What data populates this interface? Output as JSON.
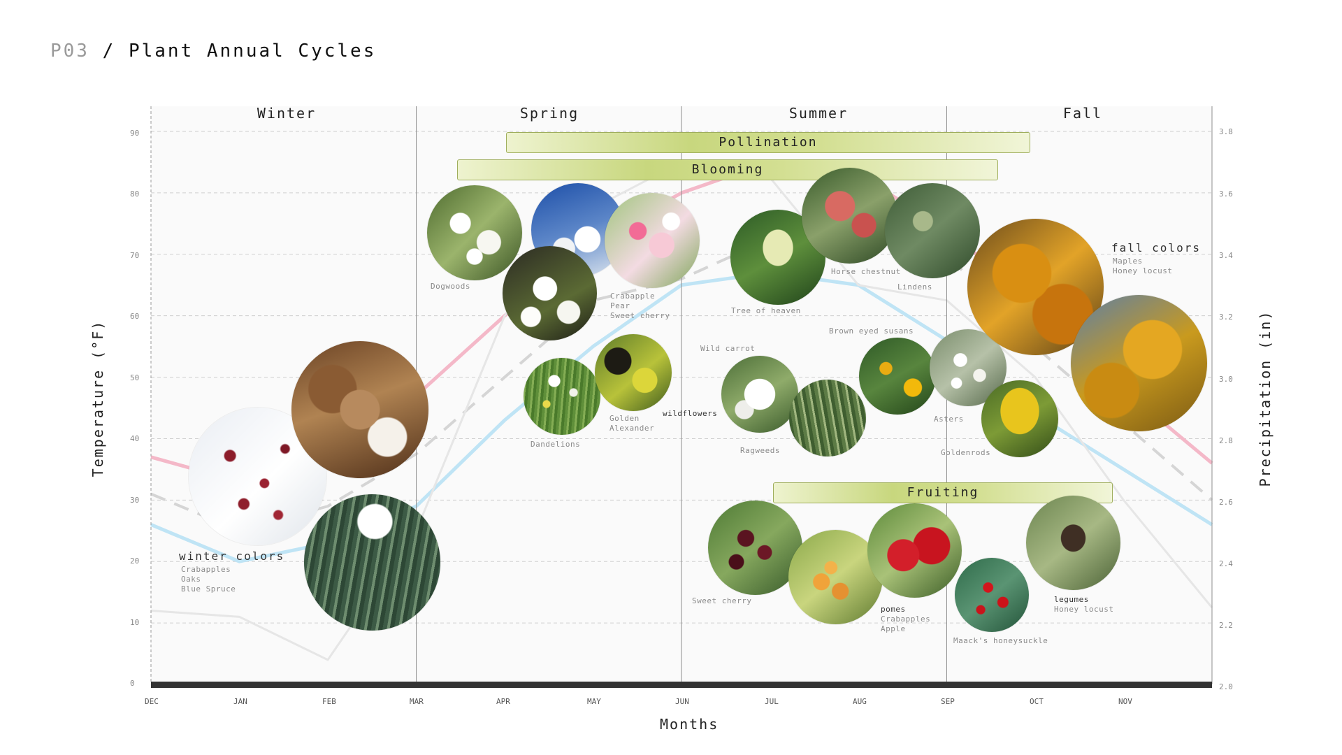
{
  "page": {
    "code": "P03",
    "separator": " / ",
    "title": "Plant Annual Cycles"
  },
  "axes": {
    "x_title": "Months",
    "y_left_title": "Temperature (°F)",
    "y_right_title": "Precipitation (in)",
    "months": [
      "DEC",
      "JAN",
      "FEB",
      "MAR",
      "APR",
      "MAY",
      "JUN",
      "JUL",
      "AUG",
      "SEP",
      "OCT",
      "NOV"
    ],
    "temp_ticks": [
      "0",
      "10",
      "20",
      "30",
      "40",
      "50",
      "60",
      "70",
      "80",
      "90"
    ],
    "precip_ticks": [
      "2.0",
      "2.2",
      "2.4",
      "2.6",
      "2.8",
      "3.0",
      "3.2",
      "3.4",
      "3.6",
      "3.8"
    ]
  },
  "seasons": [
    "Winter",
    "Spring",
    "Summer",
    "Fall"
  ],
  "bands": {
    "pollination": "Pollination",
    "blooming": "Blooming",
    "fruiting": "Fruiting"
  },
  "chart_data": {
    "type": "line",
    "x": [
      "DEC",
      "JAN",
      "FEB",
      "MAR",
      "APR",
      "MAY",
      "JUN",
      "JUL",
      "AUG",
      "SEP",
      "OCT",
      "NOV",
      "DEC"
    ],
    "xlabel": "Months",
    "ylabel": "Temperature (°F)",
    "y2label": "Precipitation (in)",
    "ylim": [
      0,
      90
    ],
    "y2lim": [
      2.0,
      3.8
    ],
    "grid": true,
    "series": [
      {
        "color": "#f4b8c8",
        "axis": "left",
        "values": [
          37,
          33,
          36,
          47,
          60,
          72,
          80,
          85,
          83,
          74,
          62,
          48,
          36
        ]
      },
      {
        "color": "#bfe4f5",
        "axis": "left",
        "values": [
          26,
          20,
          23,
          29,
          43,
          55,
          65,
          67,
          65,
          56,
          44,
          35,
          26
        ]
      },
      {
        "color": "#d5d5d5",
        "axis": "right",
        "dashed": true,
        "values": [
          2.62,
          2.5,
          2.58,
          2.75,
          3.0,
          3.25,
          3.32,
          3.45,
          3.52,
          3.4,
          3.1,
          2.85,
          2.6
        ]
      },
      {
        "color": "#e6e6e6",
        "axis": "right",
        "values": [
          2.24,
          2.22,
          2.08,
          2.5,
          3.2,
          3.55,
          3.7,
          3.65,
          3.3,
          3.25,
          3.0,
          2.6,
          2.25
        ]
      }
    ]
  },
  "groups": {
    "winter": {
      "title": "winter colors",
      "items": [
        "Crabapples",
        "Oaks",
        "Blue Spruce"
      ]
    },
    "fall": {
      "title": "fall colors",
      "items": [
        "Maples",
        "Honey locust"
      ]
    },
    "wildflowers": "wildflowers",
    "pomes": {
      "title": "pomes",
      "items": [
        "Crabapples",
        "Apple"
      ]
    },
    "legumes": {
      "title": "legumes",
      "items": [
        "Honey locust"
      ]
    }
  },
  "labels": {
    "dogwoods": "Dogwoods",
    "crabapple": "Crabapple",
    "pear": "Pear",
    "sweet_cherry": "Sweet cherry",
    "tree_of_heaven": "Tree of heaven",
    "horse_chestnut": "Horse chestnut",
    "lindens": "Lindens",
    "dandelions": "Dandelions",
    "golden": "Golden",
    "alexander": "Alexander",
    "wild_carrot": "Wild carrot",
    "ragweeds": "Ragweeds",
    "brown_eyed_susans": "Brown eyed susans",
    "asters": "Asters",
    "goldenrods": "Goldenrods",
    "sweet_cherry_fruit": "Sweet cherry",
    "maacks_honeysuckle": "Maack's honeysuckle"
  }
}
